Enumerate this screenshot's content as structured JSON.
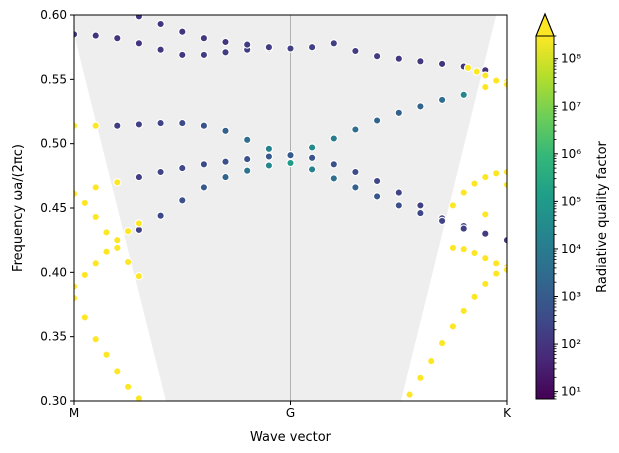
{
  "chart_data": {
    "type": "scatter",
    "title": "",
    "xlabel": "Wave vector",
    "ylabel": "Frequency ωa/(2πc)",
    "xlim": [
      0,
      2
    ],
    "ylim": [
      0.3,
      0.6
    ],
    "x_ticks": [
      {
        "value": 0,
        "label": "M"
      },
      {
        "value": 1,
        "label": "G"
      },
      {
        "value": 2,
        "label": "K"
      }
    ],
    "y_ticks": [
      {
        "value": 0.3,
        "label": "0.30"
      },
      {
        "value": 0.35,
        "label": "0.35"
      },
      {
        "value": 0.4,
        "label": "0.40"
      },
      {
        "value": 0.45,
        "label": "0.45"
      },
      {
        "value": 0.5,
        "label": "0.50"
      },
      {
        "value": 0.55,
        "label": "0.55"
      },
      {
        "value": 0.6,
        "label": "0.60"
      }
    ],
    "vertical_line_x": 1,
    "light_cone_shading": [
      [
        0,
        0.6
      ],
      [
        0,
        0.585
      ],
      [
        0.425,
        0.3
      ],
      [
        1.51,
        0.3
      ],
      [
        1.95,
        0.6
      ]
    ],
    "colorbar": {
      "label": "Radiative quality factor",
      "scale": "log",
      "range": [
        7,
        300000000
      ],
      "extend": "max",
      "ticks": [
        {
          "exp": 1,
          "label": "10¹"
        },
        {
          "exp": 2,
          "label": "10²"
        },
        {
          "exp": 3,
          "label": "10³"
        },
        {
          "exp": 4,
          "label": "10⁴"
        },
        {
          "exp": 5,
          "label": "10⁵"
        },
        {
          "exp": 6,
          "label": "10⁶"
        },
        {
          "exp": 7,
          "label": "10⁷"
        },
        {
          "exp": 8,
          "label": "10⁸"
        }
      ]
    },
    "series": [
      {
        "x": [
          0.0,
          0.1,
          0.2,
          0.3,
          0.4,
          0.5,
          0.6,
          0.7,
          0.8,
          0.9,
          1.0,
          1.1,
          1.2,
          1.3,
          1.4,
          1.5,
          1.6,
          1.7,
          1.8,
          1.9,
          2.0
        ],
        "y": [
          0.585,
          0.584,
          0.582,
          0.578,
          0.573,
          0.569,
          0.569,
          0.571,
          0.573,
          0.574,
          0.574,
          0.575,
          0.578,
          0.572,
          0.568,
          0.566,
          0.564,
          0.562,
          0.56,
          0.557,
          0.545
        ],
        "log_q": [
          2.0,
          2.0,
          2.0,
          2.0,
          2.1,
          2.1,
          2.2,
          2.2,
          2.3,
          2.4,
          2.5,
          2.3,
          2.3,
          2.2,
          2.2,
          2.1,
          2.1,
          2.0,
          2.0,
          1.9,
          8.5
        ]
      },
      {
        "x": [
          0.2,
          0.3,
          0.4,
          0.5,
          0.6,
          0.7,
          0.8,
          0.9,
          1.0
        ],
        "y": [
          0.603,
          0.599,
          0.593,
          0.587,
          0.582,
          0.579,
          0.577,
          0.575,
          0.574
        ],
        "log_q": [
          2.0,
          2.0,
          2.0,
          2.0,
          2.1,
          2.1,
          2.2,
          2.2,
          2.3
        ]
      },
      {
        "x": [
          1.0,
          1.1,
          1.2,
          1.3,
          1.4,
          1.5,
          1.6,
          1.7,
          1.8,
          1.9,
          2.0
        ],
        "y": [
          0.491,
          0.497,
          0.504,
          0.511,
          0.518,
          0.524,
          0.529,
          0.534,
          0.538,
          0.544,
          0.548
        ],
        "log_q": [
          5.0,
          4.5,
          4.0,
          3.6,
          3.3,
          3.2,
          3.3,
          3.6,
          4.4,
          8.5,
          8.5
        ]
      },
      {
        "x": [
          0.0,
          0.1,
          0.2,
          0.3,
          0.4,
          0.5,
          0.6,
          0.7,
          0.8,
          0.9,
          1.0
        ],
        "y": [
          0.514,
          0.514,
          0.514,
          0.515,
          0.516,
          0.516,
          0.514,
          0.51,
          0.503,
          0.496,
          0.491
        ],
        "log_q": [
          8.5,
          8.5,
          2.2,
          2.3,
          2.4,
          2.6,
          2.8,
          3.2,
          3.6,
          4.2,
          5.0
        ]
      },
      {
        "x": [
          0.0,
          0.1,
          0.2,
          0.3,
          0.4,
          0.5,
          0.6,
          0.7,
          0.8,
          0.9,
          1.0
        ],
        "y": [
          0.462,
          0.466,
          0.47,
          0.474,
          0.478,
          0.481,
          0.484,
          0.486,
          0.488,
          0.49,
          0.491
        ],
        "log_q": [
          8.5,
          8.5,
          8.5,
          2.3,
          2.4,
          2.5,
          2.6,
          2.7,
          2.8,
          2.9,
          3.0
        ]
      },
      {
        "x": [
          1.0,
          1.1,
          1.2,
          1.3,
          1.4,
          1.5,
          1.6,
          1.7,
          1.8,
          1.9,
          2.0
        ],
        "y": [
          0.491,
          0.489,
          0.484,
          0.478,
          0.471,
          0.462,
          0.452,
          0.442,
          0.436,
          0.445,
          0.468
        ],
        "log_q": [
          3.0,
          2.8,
          2.7,
          2.6,
          2.5,
          2.4,
          2.3,
          2.3,
          2.3,
          8.5,
          8.5
        ]
      },
      {
        "x": [
          0.2,
          0.3,
          0.4,
          0.5,
          0.6,
          0.7,
          0.8,
          0.9,
          1.0
        ],
        "y": [
          0.425,
          0.433,
          0.444,
          0.456,
          0.466,
          0.474,
          0.479,
          0.483,
          0.485
        ],
        "log_q": [
          2.2,
          2.3,
          2.5,
          2.7,
          3.0,
          3.3,
          3.8,
          4.4,
          5.0
        ]
      },
      {
        "x": [
          1.0,
          1.1,
          1.2,
          1.3,
          1.4,
          1.5,
          1.6,
          1.7,
          1.8,
          1.9,
          2.0
        ],
        "y": [
          0.485,
          0.48,
          0.473,
          0.466,
          0.459,
          0.452,
          0.446,
          0.44,
          0.434,
          0.43,
          0.425
        ],
        "log_q": [
          5.0,
          4.2,
          3.6,
          3.2,
          2.9,
          2.7,
          2.5,
          2.4,
          2.3,
          2.2,
          2.2
        ]
      },
      {
        "x": [
          0.0,
          0.05,
          0.1,
          0.15,
          0.2,
          0.25,
          0.3
        ],
        "y": [
          0.461,
          0.454,
          0.443,
          0.431,
          0.419,
          0.408,
          0.397
        ],
        "log_q": [
          8.5,
          8.5,
          8.5,
          8.5,
          8.5,
          8.5,
          8.5
        ]
      },
      {
        "x": [
          0.0,
          0.05,
          0.1,
          0.15,
          0.2,
          0.25,
          0.3
        ],
        "y": [
          0.389,
          0.398,
          0.407,
          0.416,
          0.425,
          0.432,
          0.438
        ],
        "log_q": [
          8.5,
          8.5,
          8.5,
          8.5,
          8.5,
          8.5,
          8.5
        ]
      },
      {
        "x": [
          0.0,
          0.05,
          0.1,
          0.15,
          0.2,
          0.25,
          0.3,
          0.35
        ],
        "y": [
          0.38,
          0.365,
          0.348,
          0.336,
          0.323,
          0.311,
          0.302,
          0.296
        ],
        "log_q": [
          8.5,
          8.5,
          8.5,
          8.5,
          8.5,
          8.5,
          8.5,
          8.5
        ]
      },
      {
        "x": [
          1.55,
          1.6,
          1.65,
          1.7,
          1.75,
          1.8,
          1.85,
          1.9,
          1.95,
          2.0
        ],
        "y": [
          0.305,
          0.318,
          0.331,
          0.345,
          0.358,
          0.37,
          0.381,
          0.391,
          0.399,
          0.404
        ],
        "log_q": [
          8.5,
          8.5,
          8.5,
          8.5,
          8.5,
          8.5,
          8.5,
          8.5,
          8.5,
          8.5
        ]
      },
      {
        "x": [
          1.75,
          1.8,
          1.85,
          1.9,
          1.95,
          2.0
        ],
        "y": [
          0.419,
          0.418,
          0.415,
          0.411,
          0.407,
          0.402
        ],
        "log_q": [
          8.5,
          8.5,
          8.5,
          8.5,
          8.5,
          8.5
        ]
      },
      {
        "x": [
          1.75,
          1.8,
          1.85,
          1.9,
          1.95,
          2.0
        ],
        "y": [
          0.452,
          0.462,
          0.469,
          0.474,
          0.477,
          0.478
        ],
        "log_q": [
          8.5,
          8.5,
          8.5,
          8.5,
          8.5,
          8.5
        ]
      },
      {
        "x": [
          1.82,
          1.86,
          1.9,
          1.95,
          2.0
        ],
        "y": [
          0.559,
          0.556,
          0.553,
          0.549,
          0.546
        ],
        "log_q": [
          8.5,
          8.5,
          8.5,
          8.5,
          8.5
        ]
      }
    ]
  }
}
